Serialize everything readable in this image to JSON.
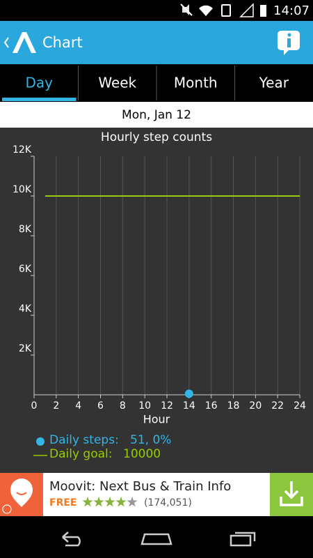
{
  "status_bar": {
    "time": "14:07"
  },
  "app_bar": {
    "title": "Chart"
  },
  "tabs": [
    "Day",
    "Week",
    "Month",
    "Year"
  ],
  "date": "Mon, Jan 12",
  "chart_data": {
    "type": "scatter",
    "title": "Hourly step counts",
    "x_label": "Hour",
    "xlim": [
      0,
      24
    ],
    "xticks": [
      0,
      2,
      4,
      6,
      8,
      10,
      12,
      14,
      16,
      18,
      20,
      22,
      24
    ],
    "ylim": [
      0,
      12000
    ],
    "yticks": [
      {
        "value": 2000,
        "label": "2K"
      },
      {
        "value": 4000,
        "label": "4K"
      },
      {
        "value": 6000,
        "label": "6K"
      },
      {
        "value": 8000,
        "label": "8K"
      },
      {
        "value": 10000,
        "label": "10K"
      },
      {
        "value": 12000,
        "label": "12K"
      }
    ],
    "grid": true,
    "series": [
      {
        "name": "Daily steps:",
        "type": "scatter",
        "color": "#33b5e5",
        "x": [
          14
        ],
        "values": [
          51
        ],
        "legend_value": "51, 0%"
      },
      {
        "name": "Daily goal:",
        "type": "line",
        "color": "#99cc00",
        "x": [
          1,
          24
        ],
        "values": [
          10000,
          10000
        ],
        "legend_value": "10000"
      }
    ]
  },
  "ad": {
    "title": "Moovit: Next Bus & Train Info",
    "price": "FREE",
    "rating_count": "(174,051)"
  }
}
